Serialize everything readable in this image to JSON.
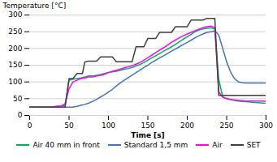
{
  "chart_data": {
    "type": "line",
    "xlabel": "Time [s]",
    "ylabel": "Temperature [°C]",
    "xlim": [
      0,
      300
    ],
    "ylim": [
      0,
      300
    ],
    "xticks": [
      0,
      50,
      100,
      150,
      200,
      250,
      300
    ],
    "yticks": [
      0,
      50,
      100,
      150,
      200,
      250,
      300
    ],
    "grid": "y",
    "legend": "bottom",
    "series": [
      {
        "name": "Air 40 mm in front",
        "color": "#00b050",
        "x": [
          0,
          5,
          10,
          15,
          20,
          25,
          30,
          35,
          40,
          45,
          50,
          55,
          60,
          65,
          70,
          75,
          80,
          85,
          90,
          95,
          100,
          105,
          110,
          115,
          120,
          125,
          130,
          135,
          140,
          145,
          150,
          155,
          160,
          165,
          170,
          175,
          180,
          185,
          190,
          195,
          200,
          205,
          210,
          215,
          220,
          225,
          230,
          235,
          240,
          245,
          250,
          255,
          260,
          265,
          270,
          275,
          280,
          285,
          290,
          295,
          300
        ],
        "values": [
          25,
          25,
          25,
          25,
          25,
          25,
          26,
          27,
          28,
          30,
          105,
          108,
          110,
          112,
          115,
          118,
          118,
          120,
          122,
          125,
          128,
          130,
          132,
          135,
          138,
          140,
          143,
          148,
          152,
          158,
          165,
          172,
          178,
          185,
          192,
          198,
          205,
          212,
          220,
          228,
          235,
          242,
          250,
          255,
          258,
          260,
          262,
          258,
          108,
          55,
          50,
          48,
          45,
          43,
          42,
          41,
          40,
          39,
          38,
          37,
          37
        ]
      },
      {
        "name": "Standard 1,5 mm",
        "color": "#4472c4",
        "x": [
          0,
          5,
          10,
          15,
          20,
          25,
          30,
          35,
          40,
          45,
          50,
          55,
          60,
          65,
          70,
          75,
          80,
          85,
          90,
          95,
          100,
          105,
          110,
          115,
          120,
          125,
          130,
          135,
          140,
          145,
          150,
          155,
          160,
          165,
          170,
          175,
          180,
          185,
          190,
          195,
          200,
          205,
          210,
          215,
          220,
          225,
          230,
          235,
          240,
          245,
          250,
          255,
          260,
          265,
          270,
          275,
          280,
          285,
          290,
          295,
          300
        ],
        "values": [
          25,
          25,
          25,
          25,
          25,
          25,
          25,
          25,
          25,
          25,
          25,
          25,
          27,
          30,
          33,
          37,
          42,
          48,
          55,
          62,
          70,
          78,
          88,
          97,
          105,
          113,
          120,
          128,
          135,
          143,
          150,
          158,
          165,
          172,
          178,
          185,
          192,
          198,
          205,
          212,
          218,
          225,
          232,
          238,
          243,
          248,
          250,
          252,
          240,
          200,
          160,
          130,
          110,
          100,
          98,
          97,
          97,
          97,
          97,
          97,
          97
        ]
      },
      {
        "name": "Air",
        "color": "#ff00ff",
        "x": [
          0,
          5,
          10,
          15,
          20,
          25,
          30,
          35,
          40,
          45,
          50,
          55,
          60,
          65,
          70,
          75,
          80,
          85,
          90,
          95,
          100,
          105,
          110,
          115,
          120,
          125,
          130,
          135,
          140,
          145,
          150,
          155,
          160,
          165,
          170,
          175,
          180,
          185,
          190,
          195,
          200,
          205,
          210,
          215,
          220,
          225,
          230,
          235,
          240,
          245,
          250,
          255,
          260,
          265,
          270,
          275,
          280,
          285,
          290,
          295,
          300
        ],
        "values": [
          25,
          25,
          25,
          25,
          25,
          25,
          26,
          27,
          28,
          35,
          80,
          100,
          105,
          110,
          112,
          115,
          115,
          118,
          120,
          123,
          128,
          132,
          135,
          138,
          142,
          145,
          148,
          153,
          158,
          165,
          172,
          180,
          188,
          195,
          202,
          210,
          218,
          225,
          232,
          238,
          243,
          248,
          253,
          258,
          262,
          265,
          267,
          262,
          70,
          55,
          50,
          48,
          46,
          45,
          44,
          43,
          43,
          43,
          43,
          43,
          43
        ]
      },
      {
        "name": "SET",
        "color": "#404040",
        "x": [
          0,
          5,
          10,
          15,
          20,
          25,
          30,
          35,
          40,
          45,
          50,
          52,
          55,
          60,
          65,
          67,
          70,
          75,
          80,
          82,
          85,
          90,
          95,
          97,
          100,
          105,
          110,
          115,
          120,
          125,
          130,
          135,
          140,
          142,
          145,
          150,
          155,
          157,
          160,
          165,
          170,
          175,
          180,
          185,
          190,
          195,
          200,
          205,
          210,
          215,
          220,
          225,
          230,
          232,
          235,
          240,
          245,
          250,
          255,
          260,
          265,
          270,
          275,
          280,
          285,
          290,
          295,
          300
        ],
        "values": [
          25,
          25,
          25,
          25,
          25,
          25,
          25,
          25,
          25,
          25,
          110,
          110,
          110,
          125,
          125,
          125,
          160,
          162,
          162,
          162,
          162,
          175,
          175,
          175,
          175,
          175,
          160,
          160,
          160,
          160,
          160,
          205,
          205,
          205,
          205,
          230,
          230,
          230,
          230,
          248,
          248,
          248,
          248,
          265,
          265,
          265,
          265,
          285,
          285,
          285,
          285,
          290,
          290,
          290,
          290,
          60,
          60,
          60,
          60,
          60,
          60,
          60,
          60,
          60,
          60,
          60,
          60,
          60
        ]
      }
    ]
  }
}
